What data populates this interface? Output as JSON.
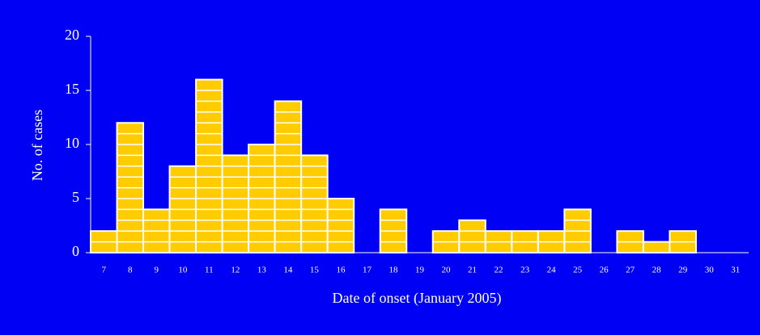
{
  "chart_data": {
    "type": "bar",
    "categories": [
      "7",
      "8",
      "9",
      "10",
      "11",
      "12",
      "13",
      "14",
      "15",
      "16",
      "17",
      "18",
      "19",
      "20",
      "21",
      "22",
      "23",
      "24",
      "25",
      "26",
      "27",
      "28",
      "29",
      "30",
      "31"
    ],
    "values": [
      2,
      12,
      4,
      8,
      16,
      9,
      10,
      14,
      9,
      5,
      0,
      4,
      0,
      2,
      3,
      2,
      2,
      2,
      4,
      0,
      2,
      1,
      2,
      0,
      0
    ],
    "color": "#ffcc00",
    "xlabel": "Date of onset (January 2005)",
    "ylabel": "No. of cases",
    "ylim": [
      0,
      20
    ],
    "yticks": [
      0,
      5,
      10,
      15,
      20
    ]
  }
}
